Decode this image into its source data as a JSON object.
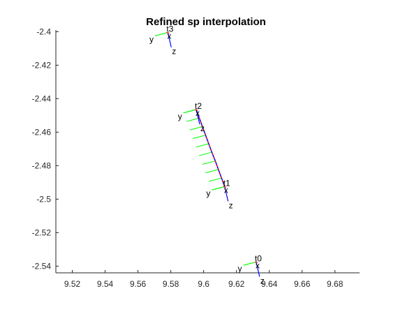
{
  "chart_data": {
    "type": "line",
    "title": "Refined sp interpolation",
    "xlabel": "",
    "ylabel": "",
    "xlim": [
      9.51,
      9.695
    ],
    "ylim": [
      -2.544,
      -2.399
    ],
    "xticks": [
      9.52,
      9.54,
      9.56,
      9.58,
      9.6,
      9.62,
      9.64,
      9.66,
      9.68
    ],
    "xtick_labels": [
      "9.52",
      "9.54",
      "9.56",
      "9.58",
      "9.6",
      "9.62",
      "9.64",
      "9.66",
      "9.68"
    ],
    "yticks": [
      -2.4,
      -2.42,
      -2.44,
      -2.46,
      -2.48,
      -2.5,
      -2.52,
      -2.54
    ],
    "ytick_labels": [
      "-2.4",
      "-2.42",
      "-2.44",
      "-2.46",
      "-2.48",
      "-2.5",
      "-2.52",
      "-2.54"
    ],
    "grid": false,
    "colors": {
      "y_axis": "#00ff00",
      "z_axis": "#0000ff",
      "x_axis": "#ff0000",
      "path": "#ff0000"
    },
    "frames": [
      {
        "label": "t0",
        "x": 9.632,
        "y": -2.5375,
        "y_dir": [
          -0.0078,
          -0.002
        ],
        "z_dir": [
          0.0021,
          -0.0088
        ]
      },
      {
        "label": "t1",
        "x": 9.6128,
        "y": -2.4925,
        "y_dir": [
          -0.0078,
          -0.002
        ],
        "z_dir": [
          0.0021,
          -0.0088
        ]
      },
      {
        "label": "t2",
        "x": 9.5955,
        "y": -2.4465,
        "y_dir": [
          -0.0078,
          -0.002
        ],
        "z_dir": [
          0.0021,
          -0.0088
        ]
      },
      {
        "label": "t3",
        "x": 9.5782,
        "y": -2.4005,
        "y_dir": [
          -0.0078,
          -0.002
        ],
        "z_dir": [
          0.0021,
          -0.0088
        ]
      }
    ],
    "interpolated_path": {
      "x": [
        9.5955,
        9.5974,
        9.5993,
        9.6012,
        9.6031,
        9.605,
        9.6071,
        9.609,
        9.6109,
        9.6128
      ],
      "y": [
        -2.4465,
        -2.4516,
        -2.4567,
        -2.4618,
        -2.4669,
        -2.472,
        -2.4772,
        -2.4823,
        -2.4874,
        -2.4925
      ]
    }
  }
}
